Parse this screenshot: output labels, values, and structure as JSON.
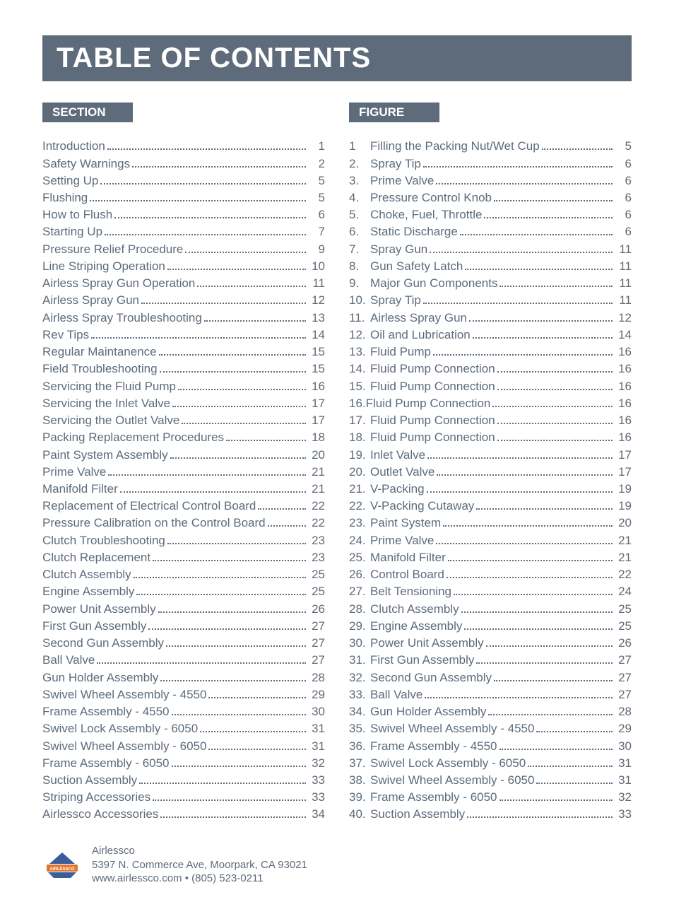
{
  "title": "TABLE OF CONTENTS",
  "section_header": "SECTION",
  "figure_header": "FIGURE",
  "colors": {
    "bar_bg": "#5e6b7a",
    "text": "#5e6b7a",
    "bar_text": "#ffffff"
  },
  "sections": [
    {
      "label": "Introduction",
      "page": "1"
    },
    {
      "label": "Safety Warnings",
      "page": "2"
    },
    {
      "label": "Setting Up",
      "page": "5"
    },
    {
      "label": "Flushing",
      "page": "5"
    },
    {
      "label": "How to Flush",
      "page": "6"
    },
    {
      "label": "Starting Up",
      "page": "7"
    },
    {
      "label": "Pressure Relief Procedure",
      "page": "9"
    },
    {
      "label": "Line Striping Operation",
      "page": "10"
    },
    {
      "label": "Airless Spray Gun Operation",
      "page": "11"
    },
    {
      "label": "Airless Spray Gun",
      "page": "12"
    },
    {
      "label": "Airless Spray Troubleshooting",
      "page": "13"
    },
    {
      "label": "Rev Tips",
      "page": "14"
    },
    {
      "label": "Regular Maintanence",
      "page": "15"
    },
    {
      "label": "Field Troubleshooting",
      "page": "15"
    },
    {
      "label": "Servicing the Fluid Pump",
      "page": "16"
    },
    {
      "label": "Servicing the Inlet Valve",
      "page": "17"
    },
    {
      "label": "Servicing the Outlet Valve",
      "page": "17"
    },
    {
      "label": "Packing Replacement Procedures",
      "page": "18"
    },
    {
      "label": "Paint System Assembly",
      "page": "20"
    },
    {
      "label": "Prime Valve",
      "page": "21"
    },
    {
      "label": "Manifold Filter",
      "page": "21"
    },
    {
      "label": "Replacement of Electrical Control Board",
      "page": "22"
    },
    {
      "label": "Pressure Calibration on the Control Board",
      "page": "22"
    },
    {
      "label": "Clutch Troubleshooting",
      "page": "23"
    },
    {
      "label": "Clutch Replacement",
      "page": "23"
    },
    {
      "label": "Clutch Assembly",
      "page": "25"
    },
    {
      "label": "Engine Assembly",
      "page": "25"
    },
    {
      "label": "Power Unit Assembly",
      "page": "26"
    },
    {
      "label": "First Gun Assembly",
      "page": "27"
    },
    {
      "label": "Second Gun Assembly",
      "page": "27"
    },
    {
      "label": "Ball Valve",
      "page": "27"
    },
    {
      "label": "Gun Holder Assembly",
      "page": "28"
    },
    {
      "label": "Swivel Wheel Assembly - 4550",
      "page": "29"
    },
    {
      "label": "Frame Assembly - 4550",
      "page": "30"
    },
    {
      "label": "Swivel Lock Assembly - 6050",
      "page": "31"
    },
    {
      "label": "Swivel Wheel Assembly - 6050",
      "page": "31"
    },
    {
      "label": "Frame Assembly - 6050",
      "page": "32"
    },
    {
      "label": "Suction Assembly",
      "page": "33"
    },
    {
      "label": "Striping Accessories",
      "page": "33"
    },
    {
      "label": "Airlessco Accessories",
      "page": "34"
    }
  ],
  "figures": [
    {
      "num": "1",
      "label": "Filling the Packing Nut/Wet Cup",
      "page": "5"
    },
    {
      "num": "2.",
      "label": "Spray Tip",
      "page": "6"
    },
    {
      "num": "3.",
      "label": "Prime Valve",
      "page": "6"
    },
    {
      "num": "4.",
      "label": "Pressure Control Knob",
      "page": "6"
    },
    {
      "num": "5.",
      "label": "Choke, Fuel, Throttle",
      "page": "6"
    },
    {
      "num": "6.",
      "label": "Static Discharge",
      "page": "6"
    },
    {
      "num": "7.",
      "label": "Spray Gun",
      "page": "11"
    },
    {
      "num": "8.",
      "label": "Gun Safety Latch",
      "page": "11"
    },
    {
      "num": "9.",
      "label": "Major Gun Components",
      "page": "11"
    },
    {
      "num": "10.",
      "label": "Spray Tip",
      "page": "11"
    },
    {
      "num": "11.",
      "label": "Airless Spray Gun",
      "page": "12"
    },
    {
      "num": "12.",
      "label": "Oil and Lubrication",
      "page": "14"
    },
    {
      "num": "13.",
      "label": "Fluid Pump",
      "page": "16"
    },
    {
      "num": "14.",
      "label": "Fluid Pump Connection",
      "page": "16"
    },
    {
      "num": "15.",
      "label": "Fluid Pump Connection",
      "page": "16"
    },
    {
      "num": "16.",
      "label": "Fluid Pump Connection",
      "page": "16",
      "nospace": true
    },
    {
      "num": "17.",
      "label": "Fluid Pump Connection",
      "page": "16"
    },
    {
      "num": "18.",
      "label": "Fluid Pump Connection",
      "page": "16"
    },
    {
      "num": "19.",
      "label": "Inlet Valve",
      "page": "17"
    },
    {
      "num": "20.",
      "label": "Outlet Valve",
      "page": "17"
    },
    {
      "num": "21.",
      "label": "V-Packing",
      "page": "19"
    },
    {
      "num": "22.",
      "label": "V-Packing Cutaway",
      "page": "19"
    },
    {
      "num": "23.",
      "label": "Paint System",
      "page": "20"
    },
    {
      "num": "24.",
      "label": "Prime Valve",
      "page": "21"
    },
    {
      "num": "25.",
      "label": "Manifold Filter",
      "page": "21"
    },
    {
      "num": "26.",
      "label": "Control Board",
      "page": "22"
    },
    {
      "num": "27.",
      "label": "Belt Tensioning",
      "page": "24"
    },
    {
      "num": "28.",
      "label": "Clutch Assembly",
      "page": "25"
    },
    {
      "num": "29.",
      "label": "Engine Assembly",
      "page": "25"
    },
    {
      "num": "30.",
      "label": "Power Unit Assembly",
      "page": "26"
    },
    {
      "num": "31.",
      "label": "First Gun Assembly",
      "page": "27"
    },
    {
      "num": "32.",
      "label": "Second Gun Assembly",
      "page": "27"
    },
    {
      "num": "33.",
      "label": "Ball Valve",
      "page": "27"
    },
    {
      "num": "34.",
      "label": "Gun Holder Assembly",
      "page": "28"
    },
    {
      "num": "35.",
      "label": "Swivel Wheel Assembly - 4550",
      "page": "29"
    },
    {
      "num": "36.",
      "label": "Frame Assembly - 4550",
      "page": "30"
    },
    {
      "num": "37.",
      "label": "Swivel Lock Assembly - 6050",
      "page": "31"
    },
    {
      "num": "38.",
      "label": "Swivel Wheel Assembly - 6050",
      "page": "31"
    },
    {
      "num": "39.",
      "label": "Frame Assembly - 6050",
      "page": "32"
    },
    {
      "num": "40.",
      "label": "Suction Assembly",
      "page": "33"
    }
  ],
  "footer": {
    "company": "Airlessco",
    "address": "5397 N. Commerce Ave, Moorpark, CA 93021",
    "contact": "www.airlessco.com • (805) 523-0211",
    "logo_text": "AIRLESSCO",
    "logo_colors": {
      "top": "#3a5d9b",
      "mid": "#e0762d",
      "bottom": "#3a5d9b",
      "text_bg": "#e0762d"
    }
  }
}
